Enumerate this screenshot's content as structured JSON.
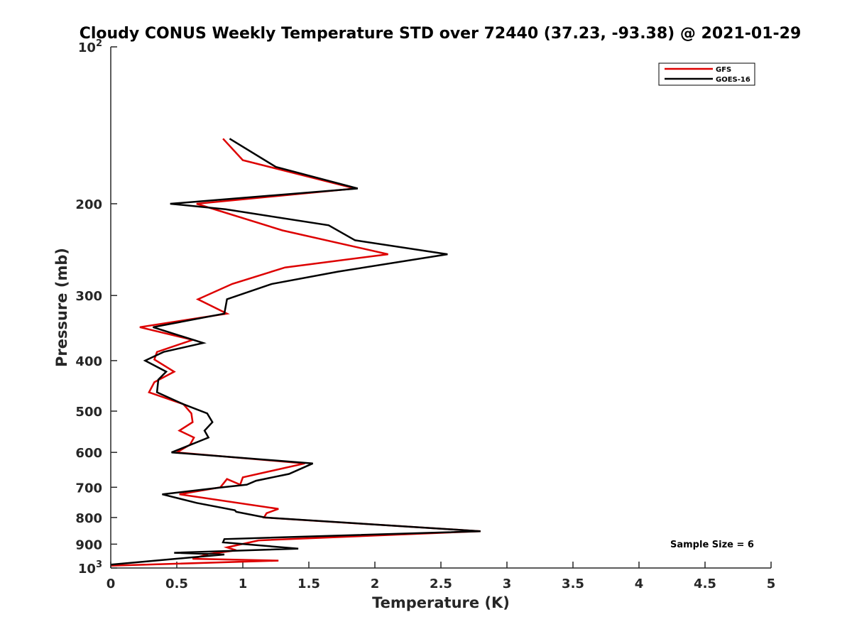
{
  "chart_data": {
    "type": "line",
    "title": "Cloudy CONUS Weekly Temperature STD over 72440 (37.23, -93.38) @ 2021-01-29",
    "xlabel": "Temperature (K)",
    "ylabel": "Pressure (mb)",
    "xlim": [
      0,
      5
    ],
    "ylim": [
      100,
      1000
    ],
    "y_scale": "log",
    "y_reversed": true,
    "grid": false,
    "legend_position": "top-right",
    "x_ticks": [
      "0",
      "0.5",
      "1",
      "1.5",
      "2",
      "2.5",
      "3",
      "3.5",
      "4",
      "4.5",
      "5"
    ],
    "y_ticks": [
      {
        "value": 100,
        "base": "10",
        "exp": "2"
      },
      {
        "value": 200,
        "label": "200"
      },
      {
        "value": 300,
        "label": "300"
      },
      {
        "value": 400,
        "label": "400"
      },
      {
        "value": 500,
        "label": "500"
      },
      {
        "value": 600,
        "label": "600"
      },
      {
        "value": 700,
        "label": "700"
      },
      {
        "value": 800,
        "label": "800"
      },
      {
        "value": 900,
        "label": "900"
      },
      {
        "value": 1000,
        "base": "10",
        "exp": "3"
      }
    ],
    "series": [
      {
        "name": "GFS",
        "color": "#dd0000",
        "points": [
          [
            0.85,
            150
          ],
          [
            1.0,
            165
          ],
          [
            1.85,
            187
          ],
          [
            0.65,
            200
          ],
          [
            1.3,
            225
          ],
          [
            2.1,
            250
          ],
          [
            1.32,
            265
          ],
          [
            0.92,
            285
          ],
          [
            0.66,
            305
          ],
          [
            0.88,
            325
          ],
          [
            0.22,
            345
          ],
          [
            0.62,
            365
          ],
          [
            0.35,
            385
          ],
          [
            0.33,
            398
          ],
          [
            0.48,
            420
          ],
          [
            0.33,
            440
          ],
          [
            0.29,
            460
          ],
          [
            0.55,
            485
          ],
          [
            0.61,
            505
          ],
          [
            0.62,
            525
          ],
          [
            0.52,
            545
          ],
          [
            0.63,
            562
          ],
          [
            0.6,
            580
          ],
          [
            0.5,
            600
          ],
          [
            1.47,
            630
          ],
          [
            1.0,
            670
          ],
          [
            0.98,
            692
          ],
          [
            0.88,
            675
          ],
          [
            0.83,
            700
          ],
          [
            0.52,
            722
          ],
          [
            1.27,
            770
          ],
          [
            1.18,
            785
          ],
          [
            1.16,
            800
          ],
          [
            2.8,
            850
          ],
          [
            1.12,
            885
          ],
          [
            0.88,
            913
          ],
          [
            0.95,
            925
          ],
          [
            0.74,
            940
          ],
          [
            0.62,
            960
          ],
          [
            1.27,
            968
          ],
          [
            0.0,
            990
          ]
        ]
      },
      {
        "name": "GOES-16",
        "color": "#000000",
        "points": [
          [
            0.9,
            150
          ],
          [
            1.25,
            170
          ],
          [
            1.87,
            187
          ],
          [
            0.45,
            200
          ],
          [
            0.87,
            205
          ],
          [
            1.65,
            220
          ],
          [
            1.85,
            235
          ],
          [
            2.55,
            250
          ],
          [
            1.72,
            270
          ],
          [
            1.22,
            285
          ],
          [
            0.88,
            305
          ],
          [
            0.86,
            325
          ],
          [
            0.32,
            345
          ],
          [
            0.7,
            370
          ],
          [
            0.4,
            385
          ],
          [
            0.26,
            400
          ],
          [
            0.42,
            420
          ],
          [
            0.36,
            435
          ],
          [
            0.35,
            460
          ],
          [
            0.55,
            485
          ],
          [
            0.73,
            505
          ],
          [
            0.77,
            525
          ],
          [
            0.71,
            545
          ],
          [
            0.74,
            562
          ],
          [
            0.46,
            600
          ],
          [
            1.53,
            630
          ],
          [
            1.35,
            660
          ],
          [
            1.1,
            680
          ],
          [
            1.03,
            692
          ],
          [
            0.85,
            700
          ],
          [
            0.39,
            722
          ],
          [
            0.65,
            750
          ],
          [
            0.94,
            775
          ],
          [
            0.95,
            780
          ],
          [
            1.17,
            800
          ],
          [
            2.8,
            850
          ],
          [
            0.86,
            880
          ],
          [
            0.85,
            893
          ],
          [
            1.42,
            918
          ],
          [
            0.48,
            935
          ],
          [
            0.86,
            942
          ],
          [
            0.0,
            985
          ]
        ]
      }
    ],
    "annotation": "Sample Size = 6"
  }
}
